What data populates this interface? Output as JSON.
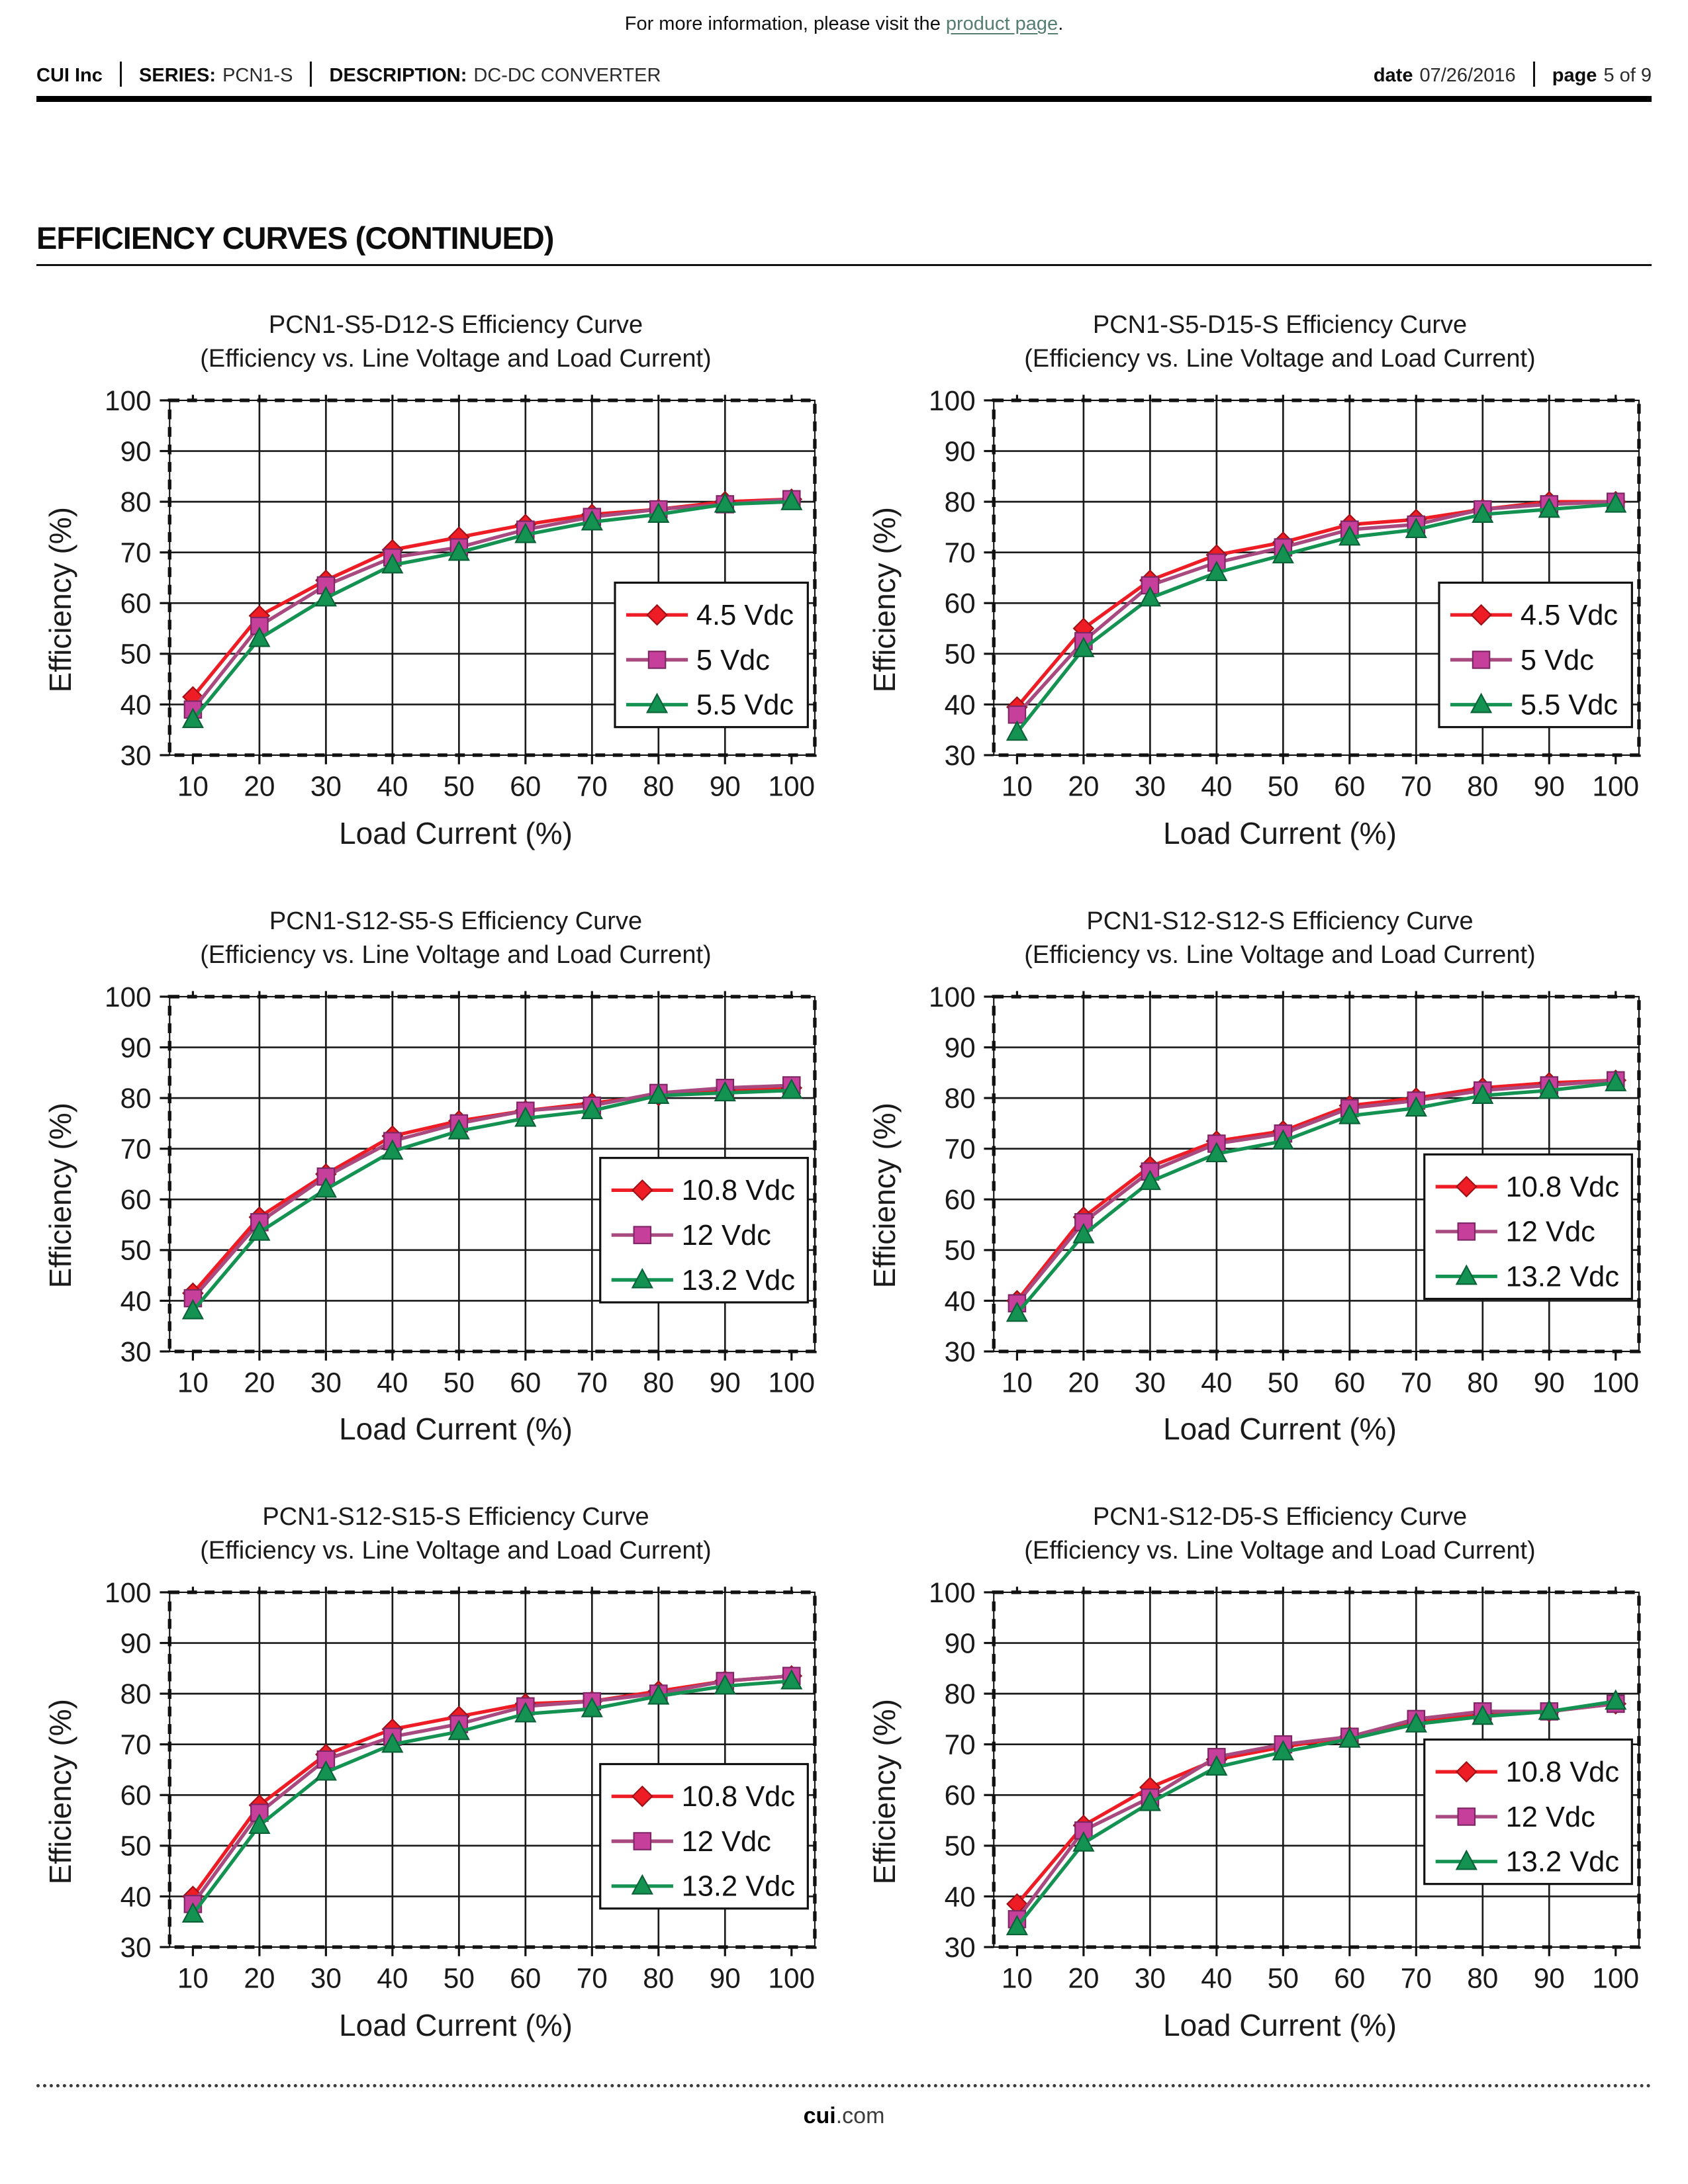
{
  "header": {
    "note_prefix": "For more information, please visit the ",
    "note_link": "product page",
    "note_suffix": ".",
    "link_color": "#567d72",
    "company": "CUI Inc",
    "series_label": "SERIES:",
    "series_value": "PCN1-S",
    "description_label": "DESCRIPTION:",
    "description_value": "DC-DC CONVERTER",
    "date_label": "date",
    "date_value": "07/26/2016",
    "page_label": "page",
    "page_value": "5 of 9"
  },
  "section": {
    "title": "EFFICIENCY CURVES (CONTINUED)"
  },
  "footer": {
    "brand_bold": "cui",
    "brand_rest": ".com"
  },
  "colors": {
    "red": "#ee1c25",
    "magenta": "#c53f9b",
    "magenta_line": "#a8497f",
    "green": "#149252"
  },
  "chart_data": [
    {
      "type": "line",
      "title": "PCN1-S5-D12-S Efficiency Curve",
      "subtitle": "(Efficiency vs. Line Voltage and Load Current)",
      "xlabel": "Load Current (%)",
      "ylabel": "Efficiency (%)",
      "x": [
        10,
        20,
        30,
        40,
        50,
        60,
        70,
        80,
        90,
        100
      ],
      "xlim": [
        6.5,
        103.5
      ],
      "ylim": [
        30,
        100
      ],
      "xtick_step": 10,
      "ytick_step": 10,
      "grid": true,
      "legend_position": "lower right",
      "legend_bottom_inset": 40,
      "series": [
        {
          "name": "4.5 Vdc",
          "marker": "diamond",
          "color": "#ee1c25",
          "line_color": "#ee1c25",
          "edge": "#9e1016",
          "values": [
            41.5,
            57.5,
            64.5,
            70.5,
            73,
            75.5,
            77.5,
            78.5,
            80,
            80.5
          ]
        },
        {
          "name": "5 Vdc",
          "marker": "square",
          "color": "#c53f9b",
          "line_color": "#a8497f",
          "edge": "#7c2663",
          "values": [
            39,
            55.5,
            63.5,
            69,
            71,
            74.5,
            77,
            78.5,
            79.5,
            80.5
          ]
        },
        {
          "name": "5.5 Vdc",
          "marker": "triangle",
          "color": "#149252",
          "line_color": "#149252",
          "edge": "#0b6137",
          "values": [
            37,
            53,
            61,
            67.5,
            70,
            73.5,
            76,
            77.5,
            79.5,
            80
          ]
        }
      ]
    },
    {
      "type": "line",
      "title": "PCN1-S5-D15-S Efficiency Curve",
      "subtitle": "(Efficiency vs. Line Voltage and Load Current)",
      "xlabel": "Load Current (%)",
      "ylabel": "Efficiency (%)",
      "x": [
        10,
        20,
        30,
        40,
        50,
        60,
        70,
        80,
        90,
        100
      ],
      "xlim": [
        6.5,
        103.5
      ],
      "ylim": [
        30,
        100
      ],
      "xtick_step": 10,
      "ytick_step": 10,
      "grid": true,
      "legend_position": "lower right",
      "legend_bottom_inset": 40,
      "series": [
        {
          "name": "4.5 Vdc",
          "marker": "diamond",
          "color": "#ee1c25",
          "line_color": "#ee1c25",
          "edge": "#9e1016",
          "values": [
            39.5,
            55,
            64.5,
            69.5,
            72,
            75.5,
            76.5,
            78.5,
            80,
            80
          ]
        },
        {
          "name": "5 Vdc",
          "marker": "square",
          "color": "#c53f9b",
          "line_color": "#a8497f",
          "edge": "#7c2663",
          "values": [
            38,
            52.5,
            63.5,
            68,
            71,
            74.5,
            75.5,
            78.5,
            79.5,
            80
          ]
        },
        {
          "name": "5.5 Vdc",
          "marker": "triangle",
          "color": "#149252",
          "line_color": "#149252",
          "edge": "#0b6137",
          "values": [
            34.5,
            51,
            61,
            66,
            69.5,
            73,
            74.5,
            77.5,
            78.5,
            79.5
          ]
        }
      ]
    },
    {
      "type": "line",
      "title": "PCN1-S12-S5-S Efficiency Curve",
      "subtitle": "(Efficiency vs. Line Voltage and Load Current)",
      "xlabel": "Load Current (%)",
      "ylabel": "Efficiency (%)",
      "x": [
        10,
        20,
        30,
        40,
        50,
        60,
        70,
        80,
        90,
        100
      ],
      "xlim": [
        6.5,
        103.5
      ],
      "ylim": [
        30,
        100
      ],
      "xtick_step": 10,
      "ytick_step": 10,
      "grid": true,
      "legend_position": "lower right",
      "legend_bottom_inset": 70,
      "series": [
        {
          "name": "10.8 Vdc",
          "marker": "diamond",
          "color": "#ee1c25",
          "line_color": "#ee1c25",
          "edge": "#9e1016",
          "values": [
            41.5,
            56.5,
            65,
            72.5,
            75.5,
            77.5,
            79,
            80.5,
            81.5,
            82
          ]
        },
        {
          "name": "12 Vdc",
          "marker": "square",
          "color": "#c53f9b",
          "line_color": "#a8497f",
          "edge": "#7c2663",
          "values": [
            40.5,
            55.5,
            64.5,
            71.5,
            75,
            77.5,
            78.5,
            81,
            82,
            82.5
          ]
        },
        {
          "name": "13.2 Vdc",
          "marker": "triangle",
          "color": "#149252",
          "line_color": "#149252",
          "edge": "#0b6137",
          "values": [
            38,
            53.5,
            62,
            69.5,
            73.5,
            76,
            77.5,
            80.5,
            81,
            81.5
          ]
        }
      ]
    },
    {
      "type": "line",
      "title": "PCN1-S12-S12-S Efficiency Curve",
      "subtitle": "(Efficiency vs. Line Voltage and Load Current)",
      "xlabel": "Load Current (%)",
      "ylabel": "Efficiency (%)",
      "x": [
        10,
        20,
        30,
        40,
        50,
        60,
        70,
        80,
        90,
        100
      ],
      "xlim": [
        6.5,
        103.5
      ],
      "ylim": [
        30,
        100
      ],
      "xtick_step": 10,
      "ytick_step": 10,
      "grid": true,
      "legend_position": "lower right",
      "legend_bottom_inset": 75,
      "series": [
        {
          "name": "10.8 Vdc",
          "marker": "diamond",
          "color": "#ee1c25",
          "line_color": "#ee1c25",
          "edge": "#9e1016",
          "values": [
            40,
            56.5,
            66.5,
            71.5,
            73.5,
            78.5,
            80,
            82,
            83,
            83.5
          ]
        },
        {
          "name": "12 Vdc",
          "marker": "square",
          "color": "#c53f9b",
          "line_color": "#a8497f",
          "edge": "#7c2663",
          "values": [
            39.5,
            55.5,
            65.5,
            71,
            73,
            78,
            79.5,
            81.5,
            82.5,
            83.5
          ]
        },
        {
          "name": "13.2 Vdc",
          "marker": "triangle",
          "color": "#149252",
          "line_color": "#149252",
          "edge": "#0b6137",
          "values": [
            37.5,
            53,
            63.5,
            69,
            71.5,
            76.5,
            78,
            80.5,
            81.5,
            83
          ]
        }
      ]
    },
    {
      "type": "line",
      "title": "PCN1-S12-S15-S Efficiency Curve",
      "subtitle": "(Efficiency vs. Line Voltage and Load Current)",
      "xlabel": "Load Current (%)",
      "ylabel": "Efficiency (%)",
      "x": [
        10,
        20,
        30,
        40,
        50,
        60,
        70,
        80,
        90,
        100
      ],
      "xlim": [
        6.5,
        103.5
      ],
      "ylim": [
        30,
        100
      ],
      "xtick_step": 10,
      "ytick_step": 10,
      "grid": true,
      "legend_position": "lower right",
      "legend_bottom_inset": 55,
      "series": [
        {
          "name": "10.8 Vdc",
          "marker": "diamond",
          "color": "#ee1c25",
          "line_color": "#ee1c25",
          "edge": "#9e1016",
          "values": [
            40,
            58,
            68,
            73,
            75.5,
            78,
            78.5,
            80.5,
            82.5,
            83.5
          ]
        },
        {
          "name": "12 Vdc",
          "marker": "square",
          "color": "#c53f9b",
          "line_color": "#a8497f",
          "edge": "#7c2663",
          "values": [
            38.5,
            56.5,
            67,
            71.5,
            74,
            77.5,
            78.5,
            80,
            82.5,
            83.5
          ]
        },
        {
          "name": "13.2 Vdc",
          "marker": "triangle",
          "color": "#149252",
          "line_color": "#149252",
          "edge": "#0b6137",
          "values": [
            36.5,
            54,
            64.5,
            70,
            72.5,
            76,
            77,
            79.5,
            81.5,
            82.5
          ]
        }
      ]
    },
    {
      "type": "line",
      "title": "PCN1-S12-D5-S Efficiency Curve",
      "subtitle": "(Efficiency vs. Line Voltage and Load Current)",
      "xlabel": "Load Current (%)",
      "ylabel": "Efficiency (%)",
      "x": [
        10,
        20,
        30,
        40,
        50,
        60,
        70,
        80,
        90,
        100
      ],
      "xlim": [
        6.5,
        103.5
      ],
      "ylim": [
        30,
        100
      ],
      "xtick_step": 10,
      "ytick_step": 10,
      "grid": true,
      "legend_position": "right",
      "legend_bottom_inset": 90,
      "series": [
        {
          "name": "10.8 Vdc",
          "marker": "diamond",
          "color": "#ee1c25",
          "line_color": "#ee1c25",
          "edge": "#9e1016",
          "values": [
            38.5,
            54,
            61.5,
            67,
            69.5,
            71.5,
            74.5,
            76,
            76.5,
            78
          ]
        },
        {
          "name": "12 Vdc",
          "marker": "square",
          "color": "#c53f9b",
          "line_color": "#a8497f",
          "edge": "#7c2663",
          "values": [
            35.5,
            53,
            59.5,
            67.5,
            70,
            71.5,
            75,
            76.5,
            76.5,
            78
          ]
        },
        {
          "name": "13.2 Vdc",
          "marker": "triangle",
          "color": "#149252",
          "line_color": "#149252",
          "edge": "#0b6137",
          "values": [
            34,
            50.5,
            58.5,
            65.5,
            68.5,
            71,
            74,
            75.5,
            76.5,
            78.5
          ]
        }
      ]
    }
  ]
}
